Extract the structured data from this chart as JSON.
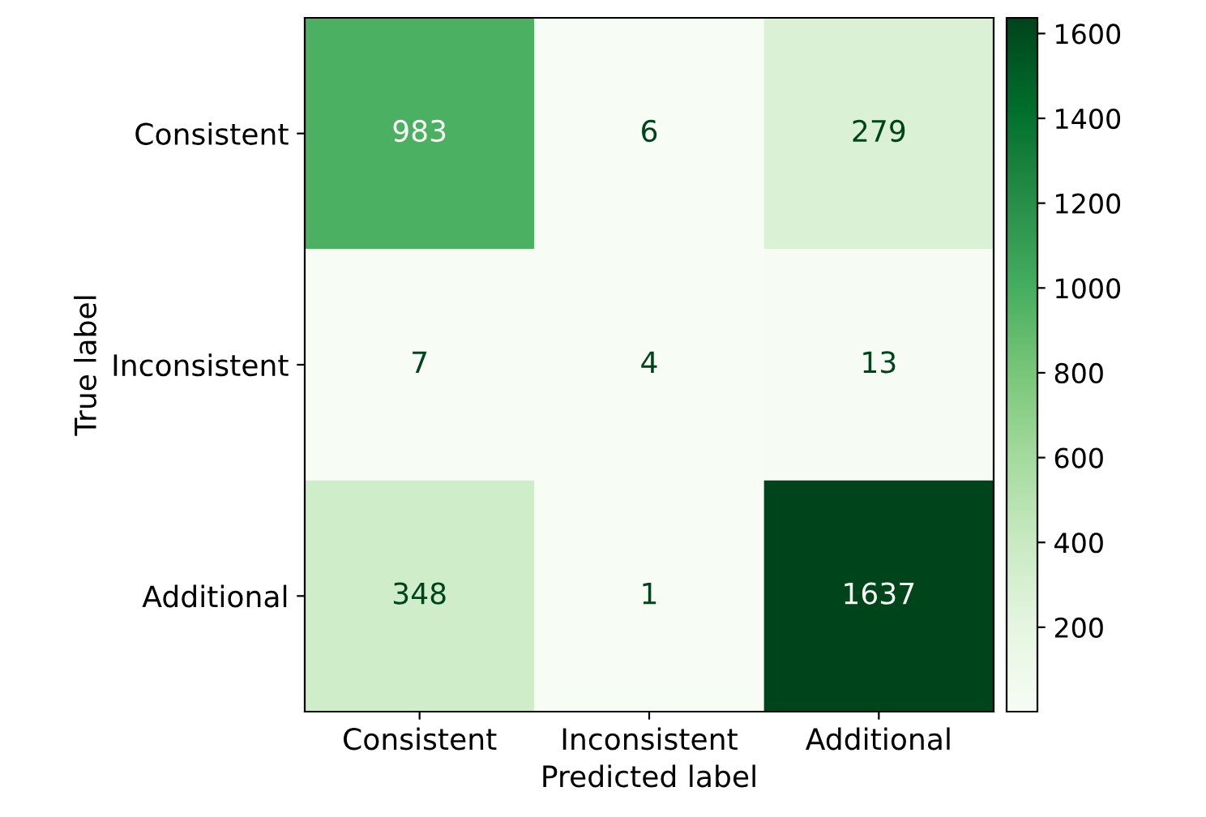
{
  "chart_data": {
    "type": "heatmap",
    "xlabel": "Predicted label",
    "ylabel": "True label",
    "categories": [
      "Consistent",
      "Inconsistent",
      "Additional"
    ],
    "y_categories": [
      "Consistent",
      "Inconsistent",
      "Additional"
    ],
    "cells": [
      [
        983,
        6,
        279
      ],
      [
        7,
        4,
        13
      ],
      [
        348,
        1,
        1637
      ]
    ],
    "clim": [
      1,
      1637
    ],
    "cticks": [
      200,
      400,
      600,
      800,
      1000,
      1200,
      1400,
      1600
    ],
    "data_labels": true
  }
}
